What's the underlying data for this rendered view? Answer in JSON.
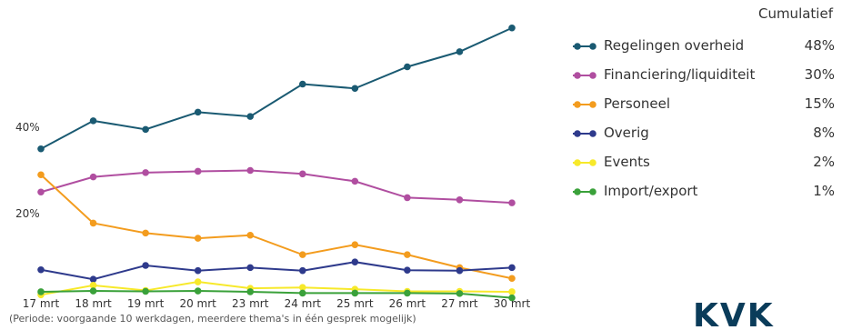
{
  "legend_heading": "Cumulatief",
  "footnote": "(Periode: voorgaande 10 werkdagen, meerdere thema's in één gesprek mogelijk)",
  "logo_text": "KVK",
  "chart_data": {
    "type": "line",
    "categories": [
      "17 mrt",
      "18 mrt",
      "19 mrt",
      "20 mrt",
      "23 mrt",
      "24 mrt",
      "25 mrt",
      "26 mrt",
      "27 mrt",
      "30 mrt"
    ],
    "ytick_labels": [
      "20%",
      "40%"
    ],
    "ylim": [
      0,
      62
    ],
    "grid": false,
    "legend_position": "right",
    "series": [
      {
        "name": "Regelingen overheid",
        "cumulative": "48%",
        "color": "#1a5a72",
        "values": [
          35.0,
          41.5,
          39.5,
          43.5,
          42.5,
          50.0,
          49.0,
          54.0,
          57.5,
          63.0
        ]
      },
      {
        "name": "Financiering/liquiditeit",
        "cumulative": "30%",
        "color": "#b04ea0",
        "values": [
          25.0,
          28.5,
          29.5,
          29.8,
          30.0,
          29.2,
          27.5,
          23.7,
          23.2,
          22.5
        ]
      },
      {
        "name": "Personeel",
        "cumulative": "15%",
        "color": "#f39c1e",
        "values": [
          29.0,
          17.8,
          15.5,
          14.3,
          15.0,
          10.5,
          12.8,
          10.5,
          7.5,
          5.0
        ]
      },
      {
        "name": "Overig",
        "cumulative": "8%",
        "color": "#2e3a8c",
        "values": [
          7.0,
          4.8,
          8.0,
          6.8,
          7.5,
          6.8,
          8.8,
          6.9,
          6.8,
          7.5
        ]
      },
      {
        "name": "Events",
        "cumulative": "2%",
        "color": "#f7e92a",
        "values": [
          1.2,
          3.4,
          2.2,
          4.2,
          2.7,
          2.9,
          2.5,
          2.0,
          2.0,
          1.9
        ]
      },
      {
        "name": "Import/export",
        "cumulative": "1%",
        "color": "#3aa13a",
        "values": [
          1.9,
          2.1,
          2.0,
          2.1,
          1.9,
          1.6,
          1.6,
          1.6,
          1.5,
          0.5
        ]
      }
    ]
  }
}
